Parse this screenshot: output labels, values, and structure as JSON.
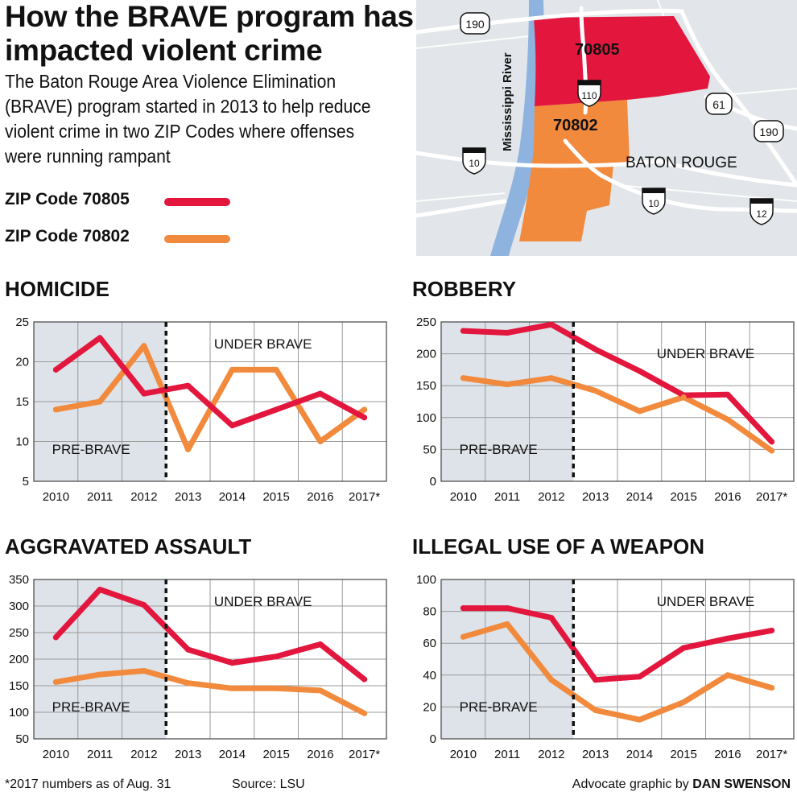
{
  "header": {
    "title": "How the BRAVE program has impacted violent crime",
    "subtitle": "The Baton Rouge Area Violence Elimination (BRAVE) program started in 2013 to help reduce violent crime in two ZIP Codes where offenses were running rampant"
  },
  "legend": {
    "items": [
      {
        "label": "ZIP Code 70805",
        "color": "#e3173e"
      },
      {
        "label": "ZIP Code 70802",
        "color": "#f28a3d"
      }
    ]
  },
  "map": {
    "labels": {
      "zip_70805": "70805",
      "zip_70802": "70802",
      "river": "Mississippi River",
      "city": "BATON ROUGE"
    },
    "shields": {
      "i110": "110",
      "i10_west": "10",
      "i10_east": "10",
      "i12": "12",
      "us190_west": "190",
      "us190_east": "190",
      "us61": "61"
    },
    "colors": {
      "zip_70805": "#e3173e",
      "zip_70802": "#f28a3d",
      "river": "#8fb3df",
      "land": "#e2e6ea"
    }
  },
  "chart_data": [
    {
      "type": "line",
      "title": "HOMICIDE",
      "categories": [
        "2010",
        "2011",
        "2012",
        "2013",
        "2014",
        "2015",
        "2016",
        "2017*"
      ],
      "yticks": [
        5,
        10,
        15,
        20,
        25
      ],
      "ylim": [
        5,
        25
      ],
      "shade_label": "PRE-BRAVE",
      "after_label": "UNDER BRAVE",
      "series": [
        {
          "name": "ZIP Code 70805",
          "color": "#e3173e",
          "values": [
            19,
            23,
            16,
            17,
            12,
            14,
            16,
            13
          ]
        },
        {
          "name": "ZIP Code 70802",
          "color": "#f28a3d",
          "values": [
            14,
            15,
            22,
            9,
            19,
            19,
            10,
            14
          ]
        }
      ]
    },
    {
      "type": "line",
      "title": "ROBBERY",
      "categories": [
        "2010",
        "2011",
        "2012",
        "2013",
        "2014",
        "2015",
        "2016",
        "2017*"
      ],
      "yticks": [
        0,
        50,
        100,
        150,
        200,
        250
      ],
      "ylim": [
        0,
        250
      ],
      "shade_label": "PRE-BRAVE",
      "after_label": "UNDER BRAVE",
      "series": [
        {
          "name": "ZIP Code 70805",
          "color": "#e3173e",
          "values": [
            236,
            233,
            246,
            207,
            173,
            135,
            136,
            62
          ]
        },
        {
          "name": "ZIP Code 70802",
          "color": "#f28a3d",
          "values": [
            162,
            152,
            162,
            142,
            110,
            132,
            97,
            48
          ]
        }
      ]
    },
    {
      "type": "line",
      "title": "AGGRAVATED ASSAULT",
      "categories": [
        "2010",
        "2011",
        "2012",
        "2013",
        "2014",
        "2015",
        "2016",
        "2017*"
      ],
      "yticks": [
        50,
        100,
        150,
        200,
        250,
        300,
        350
      ],
      "ylim": [
        50,
        350
      ],
      "shade_label": "PRE-BRAVE",
      "after_label": "UNDER BRAVE",
      "series": [
        {
          "name": "ZIP Code 70805",
          "color": "#e3173e",
          "values": [
            241,
            331,
            302,
            218,
            193,
            205,
            228,
            162
          ]
        },
        {
          "name": "ZIP Code 70802",
          "color": "#f28a3d",
          "values": [
            157,
            171,
            178,
            155,
            145,
            145,
            141,
            98
          ]
        }
      ]
    },
    {
      "type": "line",
      "title": "ILLEGAL USE OF A WEAPON",
      "categories": [
        "2010",
        "2011",
        "2012",
        "2013",
        "2014",
        "2015",
        "2016",
        "2017*"
      ],
      "yticks": [
        0,
        20,
        40,
        60,
        80,
        100
      ],
      "ylim": [
        0,
        100
      ],
      "shade_label": "PRE-BRAVE",
      "after_label": "UNDER BRAVE",
      "series": [
        {
          "name": "ZIP Code 70805",
          "color": "#e3173e",
          "values": [
            82,
            82,
            76,
            37,
            39,
            57,
            63,
            68
          ]
        },
        {
          "name": "ZIP Code 70802",
          "color": "#f28a3d",
          "values": [
            64,
            72,
            37,
            18,
            12,
            23,
            40,
            32
          ]
        }
      ]
    }
  ],
  "footer": {
    "note": "*2017 numbers as of Aug. 31",
    "source": "Source: LSU",
    "credit_prefix": "Advocate graphic by",
    "credit_name": "DAN SWENSON"
  }
}
